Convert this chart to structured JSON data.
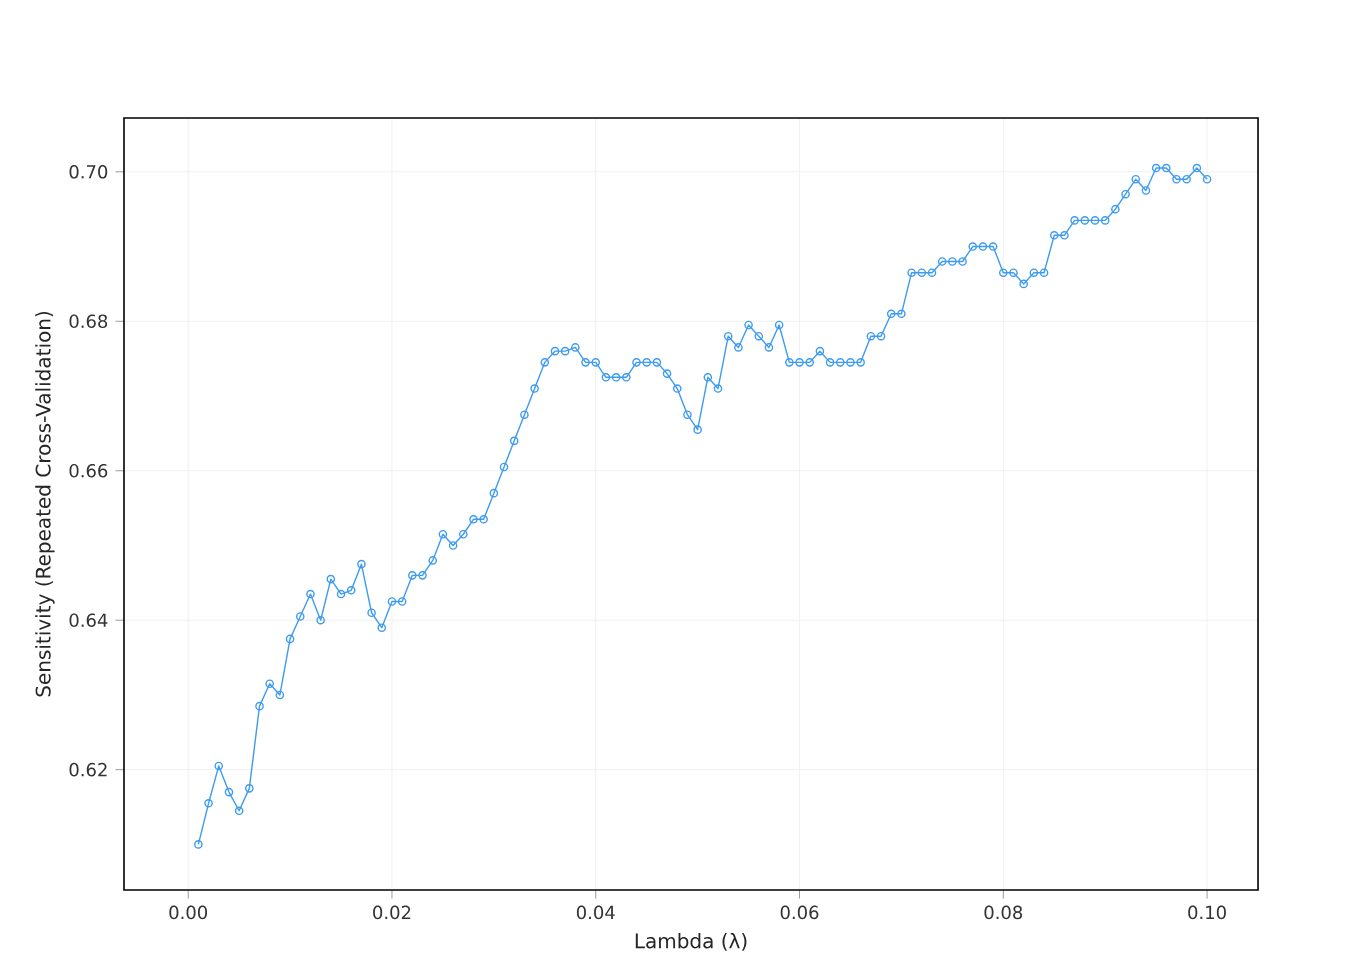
{
  "chart_data": {
    "type": "line",
    "xlabel": "Lambda (λ)",
    "ylabel": "Sensitivity (Repeated Cross-Validation)",
    "x": [
      0.001,
      0.002,
      0.003,
      0.004,
      0.005,
      0.006,
      0.007,
      0.008,
      0.009,
      0.01,
      0.011,
      0.012,
      0.013,
      0.014,
      0.015,
      0.016,
      0.017,
      0.018,
      0.019,
      0.02,
      0.021,
      0.022,
      0.023,
      0.024,
      0.025,
      0.026,
      0.027,
      0.028,
      0.029,
      0.03,
      0.031,
      0.032,
      0.033,
      0.034,
      0.035,
      0.036,
      0.037,
      0.038,
      0.039,
      0.04,
      0.041,
      0.042,
      0.043,
      0.044,
      0.045,
      0.046,
      0.047,
      0.048,
      0.049,
      0.05,
      0.051,
      0.052,
      0.053,
      0.054,
      0.055,
      0.056,
      0.057,
      0.058,
      0.059,
      0.06,
      0.061,
      0.062,
      0.063,
      0.064,
      0.065,
      0.066,
      0.067,
      0.068,
      0.069,
      0.07,
      0.071,
      0.072,
      0.073,
      0.074,
      0.075,
      0.076,
      0.077,
      0.078,
      0.079,
      0.08,
      0.081,
      0.082,
      0.083,
      0.084,
      0.085,
      0.086,
      0.087,
      0.088,
      0.089,
      0.09,
      0.091,
      0.092,
      0.093,
      0.094,
      0.095,
      0.096,
      0.097,
      0.098,
      0.099,
      0.1
    ],
    "series": [
      {
        "color": "#3d9bf0",
        "values": [
          0.61,
          0.6155,
          0.6205,
          0.617,
          0.6145,
          0.6175,
          0.6285,
          0.6315,
          0.63,
          0.6375,
          0.6405,
          0.6435,
          0.64,
          0.6455,
          0.6435,
          0.644,
          0.6475,
          0.641,
          0.639,
          0.6425,
          0.6425,
          0.646,
          0.646,
          0.648,
          0.6515,
          0.65,
          0.6515,
          0.6535,
          0.6535,
          0.657,
          0.6605,
          0.664,
          0.6675,
          0.671,
          0.6745,
          0.676,
          0.676,
          0.6765,
          0.6745,
          0.6745,
          0.6725,
          0.6725,
          0.6725,
          0.6745,
          0.6745,
          0.6745,
          0.673,
          0.671,
          0.6675,
          0.6655,
          0.6725,
          0.671,
          0.678,
          0.6765,
          0.6795,
          0.678,
          0.6765,
          0.6795,
          0.6745,
          0.6745,
          0.6745,
          0.676,
          0.6745,
          0.6745,
          0.6745,
          0.6745,
          0.678,
          0.678,
          0.681,
          0.681,
          0.6865,
          0.6865,
          0.6865,
          0.688,
          0.688,
          0.688,
          0.69,
          0.69,
          0.69,
          0.6865,
          0.6865,
          0.685,
          0.6865,
          0.6865,
          0.6915,
          0.6915,
          0.6935,
          0.6935,
          0.6935,
          0.6935,
          0.695,
          0.697,
          0.699,
          0.6975,
          0.7005,
          0.7005,
          0.699,
          0.699,
          0.7005,
          0.699
        ]
      }
    ],
    "xlim": [
      -0.0063,
      0.105
    ],
    "ylim": [
      0.6039,
      0.7072
    ],
    "xticks": [
      {
        "value": 0,
        "label": "0.00"
      },
      {
        "value": 0.02,
        "label": "0.02"
      },
      {
        "value": 0.04,
        "label": "0.04"
      },
      {
        "value": 0.06,
        "label": "0.06"
      },
      {
        "value": 0.08,
        "label": "0.08"
      },
      {
        "value": 0.1,
        "label": "0.10"
      }
    ],
    "yticks": [
      {
        "value": 0.62,
        "label": "0.62"
      },
      {
        "value": 0.64,
        "label": "0.64"
      },
      {
        "value": 0.66,
        "label": "0.66"
      },
      {
        "value": 0.68,
        "label": "0.68"
      },
      {
        "value": 0.7,
        "label": "0.70"
      }
    ],
    "grid": true,
    "marker": "circle",
    "line_style": "solid"
  }
}
